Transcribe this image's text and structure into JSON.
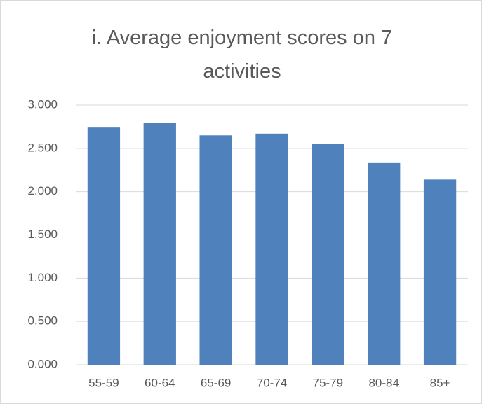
{
  "chart_data": {
    "type": "bar",
    "title": "i. Average enjoyment scores on 7 activities",
    "categories": [
      "55-59",
      "60-64",
      "65-69",
      "70-74",
      "75-79",
      "80-84",
      "85+"
    ],
    "values": [
      2.74,
      2.79,
      2.65,
      2.67,
      2.55,
      2.33,
      2.14
    ],
    "color": "#4f81bd",
    "ylim": [
      0,
      3
    ],
    "yticks": [
      {
        "value": 0,
        "label": "0.000"
      },
      {
        "value": 0.5,
        "label": "0.500"
      },
      {
        "value": 1,
        "label": "1.000"
      },
      {
        "value": 1.5,
        "label": "1.500"
      },
      {
        "value": 2,
        "label": "2.000"
      },
      {
        "value": 2.5,
        "label": "2.500"
      },
      {
        "value": 3,
        "label": "3.000"
      }
    ],
    "grid": true
  }
}
